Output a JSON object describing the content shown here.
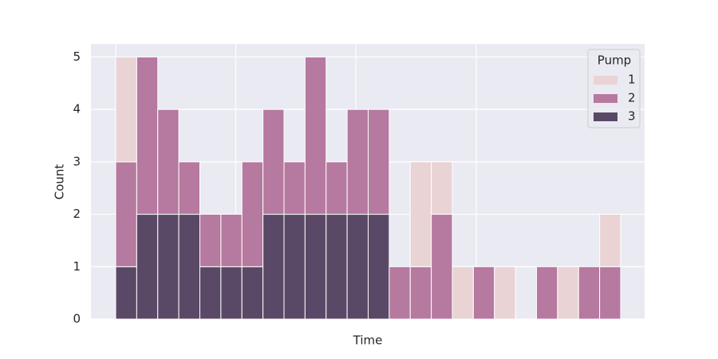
{
  "chart_data": {
    "type": "stacked_histogram",
    "x_label": "Time",
    "y_label": "Count",
    "categories": [
      null,
      null,
      null,
      null,
      null,
      null,
      null,
      null,
      null,
      null,
      null,
      null,
      null,
      null,
      null,
      null,
      null,
      null,
      null,
      null,
      null,
      null,
      null,
      null
    ],
    "legend_title": "Pump",
    "legend_position": "upper right",
    "grid": true,
    "ylim": [
      0,
      5.25
    ],
    "yticks": [
      0,
      1,
      2,
      3,
      4,
      5
    ],
    "series": [
      {
        "name": "1",
        "color": "#ead3d5",
        "values": [
          2,
          0,
          0,
          0,
          0,
          0,
          0,
          0,
          0,
          0,
          0,
          0,
          0,
          0,
          2,
          1,
          1,
          0,
          1,
          0,
          0,
          1,
          0,
          1
        ]
      },
      {
        "name": "2",
        "color": "#b6799f",
        "values": [
          2,
          3,
          2,
          1,
          1,
          1,
          2,
          2,
          1,
          3,
          1,
          2,
          2,
          1,
          1,
          2,
          0,
          1,
          0,
          0,
          1,
          0,
          1,
          1
        ]
      },
      {
        "name": "3",
        "color": "#5a4966",
        "values": [
          1,
          2,
          2,
          2,
          1,
          1,
          1,
          2,
          2,
          2,
          2,
          2,
          2,
          0,
          0,
          0,
          0,
          0,
          0,
          0,
          0,
          0,
          0,
          0
        ]
      }
    ]
  }
}
